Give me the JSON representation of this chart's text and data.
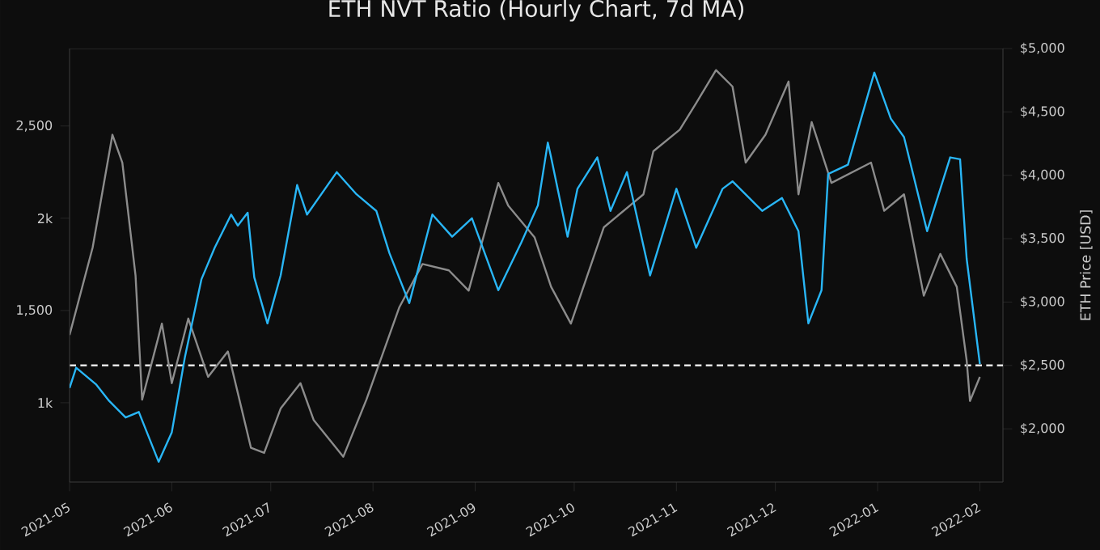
{
  "chart_data": {
    "type": "line",
    "title": "ETH NVT Ratio (Hourly Chart, 7d MA)",
    "y2label": "ETH Price [USD]",
    "xlim": [
      "2021-05-01",
      "2022-02-08"
    ],
    "xticks": [
      "2021-05",
      "2021-06",
      "2021-07",
      "2021-08",
      "2021-09",
      "2021-10",
      "2021-11",
      "2021-12",
      "2022-01",
      "2022-02"
    ],
    "ylim": [
      570,
      2920
    ],
    "yticks": [
      {
        "value": 1000,
        "label": "1k"
      },
      {
        "value": 1500,
        "label": "1,500"
      },
      {
        "value": 2000,
        "label": "2k"
      },
      {
        "value": 2500,
        "label": "2,500"
      }
    ],
    "y2lim": [
      1580,
      5000
    ],
    "y2ticks": [
      {
        "value": 2000,
        "label": "$2,000"
      },
      {
        "value": 2500,
        "label": "$2,500"
      },
      {
        "value": 3000,
        "label": "$3,000"
      },
      {
        "value": 3500,
        "label": "$3,500"
      },
      {
        "value": 4000,
        "label": "$4,000"
      },
      {
        "value": 4500,
        "label": "$4,500"
      },
      {
        "value": 5000,
        "label": "$5,000"
      }
    ],
    "ref_lines": [
      {
        "axis": "y2",
        "value": 2500,
        "color": "#e6e6e6",
        "line_style": "dashed"
      }
    ],
    "series": [
      {
        "color": "#29b6f6",
        "x": [
          "2021-05-01",
          "2021-05-03",
          "2021-05-09",
          "2021-05-13",
          "2021-05-18",
          "2021-05-22",
          "2021-05-28",
          "2021-06-01",
          "2021-06-05",
          "2021-06-10",
          "2021-06-14",
          "2021-06-19",
          "2021-06-21",
          "2021-06-24",
          "2021-06-26",
          "2021-06-30",
          "2021-07-04",
          "2021-07-09",
          "2021-07-12",
          "2021-07-21",
          "2021-07-27",
          "2021-08-02",
          "2021-08-06",
          "2021-08-12",
          "2021-08-19",
          "2021-08-25",
          "2021-08-31",
          "2021-09-08",
          "2021-09-15",
          "2021-09-20",
          "2021-09-23",
          "2021-09-24",
          "2021-09-29",
          "2021-10-02",
          "2021-10-08",
          "2021-10-12",
          "2021-10-17",
          "2021-10-24",
          "2021-11-01",
          "2021-11-07",
          "2021-11-15",
          "2021-11-18",
          "2021-11-27",
          "2021-12-03",
          "2021-12-08",
          "2021-12-11",
          "2021-12-15",
          "2021-12-17",
          "2021-12-23",
          "2021-12-31",
          "2022-01-05",
          "2022-01-09",
          "2022-01-16",
          "2022-01-23",
          "2022-01-26",
          "2022-01-28",
          "2022-02-01"
        ],
        "values": [
          1080,
          1190,
          1100,
          1010,
          920,
          950,
          680,
          840,
          1250,
          1670,
          1840,
          2020,
          1960,
          2030,
          1680,
          1430,
          1690,
          2180,
          2020,
          2250,
          2130,
          2040,
          1810,
          1540,
          2020,
          1900,
          2000,
          1610,
          1870,
          2070,
          2410,
          2330,
          1900,
          2160,
          2330,
          2040,
          2250,
          1690,
          2160,
          1840,
          2160,
          2200,
          2040,
          2110,
          1930,
          1430,
          1610,
          2240,
          2290,
          2790,
          2540,
          2440,
          1930,
          2330,
          2320,
          1780,
          1210
        ]
      },
      {
        "color": "#8c8c8c",
        "axis": "y2",
        "x": [
          "2021-05-01",
          "2021-05-08",
          "2021-05-14",
          "2021-05-17",
          "2021-05-21",
          "2021-05-23",
          "2021-05-29",
          "2021-06-01",
          "2021-06-06",
          "2021-06-12",
          "2021-06-18",
          "2021-06-25",
          "2021-06-29",
          "2021-07-04",
          "2021-07-10",
          "2021-07-14",
          "2021-07-23",
          "2021-07-30",
          "2021-08-09",
          "2021-08-16",
          "2021-08-24",
          "2021-08-30",
          "2021-09-08",
          "2021-09-11",
          "2021-09-19",
          "2021-09-24",
          "2021-09-30",
          "2021-10-10",
          "2021-10-22",
          "2021-10-25",
          "2021-11-02",
          "2021-11-07",
          "2021-11-13",
          "2021-11-18",
          "2021-11-22",
          "2021-11-28",
          "2021-12-05",
          "2021-12-08",
          "2021-12-12",
          "2021-12-18",
          "2021-12-30",
          "2022-01-03",
          "2022-01-09",
          "2022-01-15",
          "2022-01-20",
          "2022-01-25",
          "2022-01-28",
          "2022-01-29",
          "2022-02-01"
        ],
        "values": [
          2740,
          3430,
          4320,
          4100,
          3210,
          2230,
          2830,
          2360,
          2870,
          2410,
          2610,
          1850,
          1810,
          2160,
          2360,
          2070,
          1780,
          2230,
          2960,
          3300,
          3250,
          3090,
          3940,
          3760,
          3510,
          3120,
          2830,
          3590,
          3850,
          4190,
          4360,
          4570,
          4830,
          4700,
          4100,
          4320,
          4740,
          3850,
          4420,
          3940,
          4100,
          3720,
          3850,
          3050,
          3380,
          3120,
          2540,
          2220,
          2410
        ]
      }
    ]
  }
}
